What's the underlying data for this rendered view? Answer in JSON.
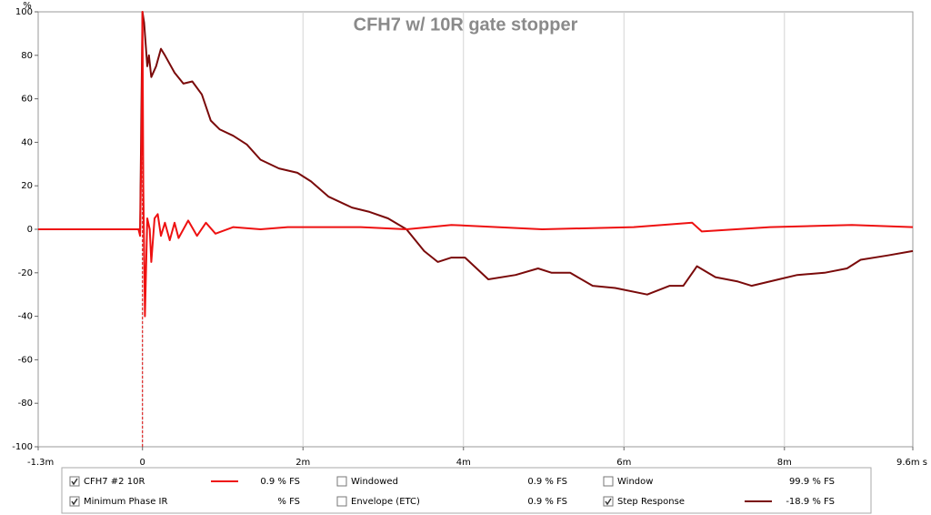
{
  "chart_data": {
    "type": "line",
    "title": "CFH7 w/ 10R gate stopper",
    "y_label": "%",
    "xlim": [
      -1.3,
      9.6
    ],
    "ylim": [
      -100,
      100
    ],
    "xticks": [
      {
        "value": -1.3,
        "label": "-1.3m"
      },
      0,
      {
        "value": 2,
        "label": "2m"
      },
      {
        "value": 4,
        "label": "4m"
      },
      {
        "value": 6,
        "label": "6m"
      },
      {
        "value": 8,
        "label": "8m"
      },
      {
        "value": 9.6,
        "label": "9.6m s"
      }
    ],
    "yticks": [
      -100,
      -80,
      -60,
      -40,
      -20,
      0,
      20,
      40,
      60,
      80,
      100
    ],
    "grid": "x",
    "cursor_x": 0,
    "series": [
      {
        "name": "CFH7 #2 10R",
        "color": "#ee1111",
        "readout": "0.9 % FS",
        "checked": true,
        "x": [
          -1.3,
          -0.05,
          -0.03,
          -0.01,
          0,
          0.01,
          0.03,
          0.06,
          0.09,
          0.11,
          0.15,
          0.19,
          0.23,
          0.28,
          0.34,
          0.4,
          0.45,
          0.57,
          0.68,
          0.79,
          0.91,
          1.13,
          1.47,
          1.81,
          2.72,
          3.29,
          3.85,
          4.98,
          6.12,
          6.85,
          6.97,
          7.82,
          8.84,
          9.6
        ],
        "values": [
          0,
          0,
          -3,
          50,
          100,
          20,
          -40,
          5,
          0,
          -15,
          5,
          7,
          -3,
          3,
          -5,
          3,
          -4,
          4,
          -3,
          3,
          -2,
          1,
          0,
          1,
          1,
          0,
          2,
          0,
          1,
          3,
          -1,
          1,
          2,
          1
        ]
      },
      {
        "name": "Step Response",
        "color": "#7a0a0a",
        "readout": "-18.9 % FS",
        "checked": true,
        "x": [
          -1.3,
          -0.05,
          -0.03,
          0,
          0.02,
          0.06,
          0.08,
          0.11,
          0.17,
          0.23,
          0.28,
          0.4,
          0.51,
          0.62,
          0.74,
          0.85,
          0.96,
          1.13,
          1.3,
          1.47,
          1.7,
          1.93,
          2.1,
          2.32,
          2.61,
          2.83,
          3.06,
          3.29,
          3.51,
          3.68,
          3.85,
          4.02,
          4.31,
          4.65,
          4.93,
          5.1,
          5.33,
          5.61,
          5.89,
          6.29,
          6.57,
          6.74,
          6.91,
          7.14,
          7.42,
          7.59,
          7.93,
          8.16,
          8.5,
          8.78,
          8.95,
          9.29,
          9.6
        ],
        "values": [
          0,
          0,
          0,
          100,
          95,
          75,
          80,
          70,
          75,
          83,
          80,
          72,
          67,
          68,
          62,
          50,
          46,
          43,
          39,
          32,
          28,
          26,
          22,
          15,
          10,
          8,
          5,
          0,
          -10,
          -15,
          -13,
          -13,
          -23,
          -21,
          -18,
          -20,
          -20,
          -26,
          -27,
          -30,
          -26,
          -26,
          -17,
          -22,
          -24,
          -26,
          -23,
          -21,
          -20,
          -18,
          -14,
          -12,
          -10
        ]
      }
    ],
    "other_controls": [
      {
        "label": "Minimum Phase IR",
        "readout": "% FS",
        "checked": true,
        "color": "#a0a0a0"
      },
      {
        "label": "Windowed",
        "readout": "0.9 % FS",
        "checked": false,
        "color": "#dd1111"
      },
      {
        "label": "Envelope (ETC)",
        "readout": "0.9 % FS",
        "checked": false,
        "color": "#990000"
      },
      {
        "label": "Window",
        "readout": "99.9 % FS",
        "checked": false,
        "color": "#1111cc"
      }
    ]
  }
}
